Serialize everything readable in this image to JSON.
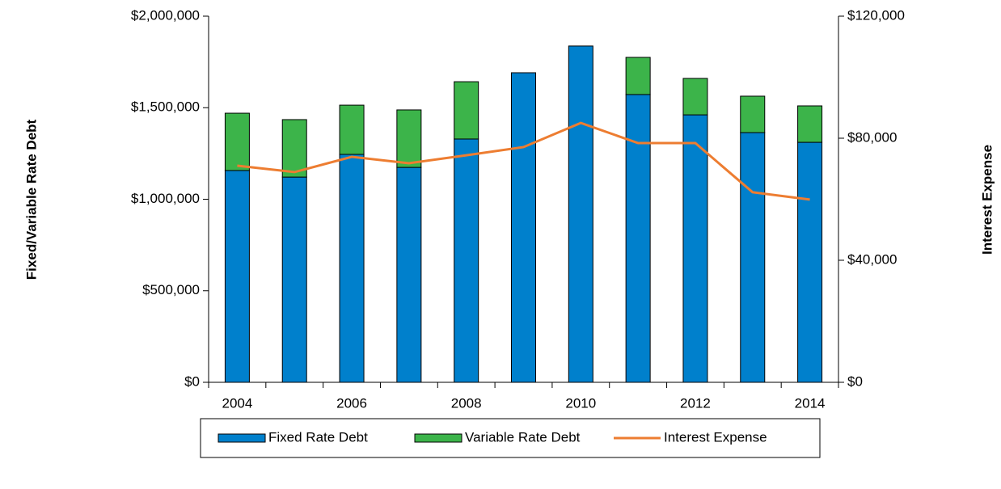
{
  "chart_data": {
    "type": "bar",
    "stacked": true,
    "y_title": "Fixed/Variable Rate Debt",
    "y2_title": "Interest Expense",
    "categories": [
      "2004",
      null,
      "2006",
      null,
      "2008",
      null,
      "2010",
      null,
      "2012",
      null,
      "2014"
    ],
    "series": [
      {
        "name": "Fixed Rate Debt",
        "color": "#0080cc",
        "type": "bar",
        "values": [
          1157000,
          1121000,
          1245000,
          1174000,
          1329000,
          1691000,
          1837000,
          1572000,
          1461000,
          1364000,
          1311000
        ]
      },
      {
        "name": "Variable Rate Debt",
        "color": "#3cb44a",
        "type": "bar",
        "values": [
          313000,
          314000,
          269000,
          314000,
          313000,
          0,
          0,
          203000,
          199000,
          199000,
          199000
        ]
      },
      {
        "name": "Interest Expense",
        "color": "#ed7d31",
        "type": "line",
        "axis": "y2",
        "values": [
          71000,
          68900,
          73900,
          71800,
          74400,
          77100,
          85000,
          78400,
          78400,
          62300,
          59900
        ]
      }
    ],
    "ylim": [
      0,
      2000000
    ],
    "yticks": [
      {
        "value": 0,
        "label": "$0"
      },
      {
        "value": 500000,
        "label": "$500,000"
      },
      {
        "value": 1000000,
        "label": "$1,000,000"
      },
      {
        "value": 1500000,
        "label": "$1,500,000"
      },
      {
        "value": 2000000,
        "label": "$2,000,000"
      }
    ],
    "y2lim": [
      0,
      120000
    ],
    "y2ticks": [
      {
        "value": 0,
        "label": "$0"
      },
      {
        "value": 40000,
        "label": "$40,000"
      },
      {
        "value": 80000,
        "label": "$80,000"
      },
      {
        "value": 120000,
        "label": "$120,000"
      }
    ],
    "legend": "bottom",
    "grid": false
  }
}
